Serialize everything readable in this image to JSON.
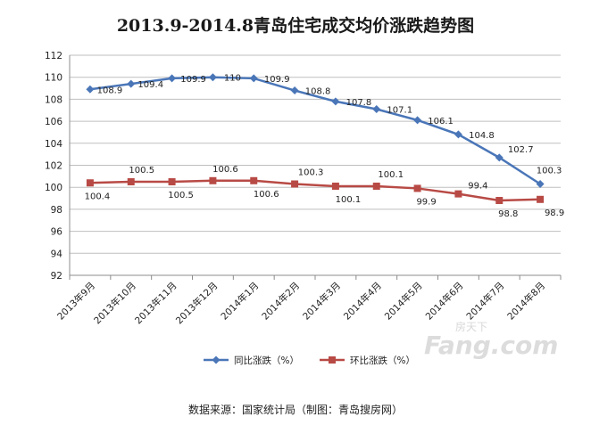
{
  "chart_data": {
    "type": "line",
    "title": "2013.9-2014.8青岛住宅成交均价涨跌趋势图",
    "categories": [
      "2013年9月",
      "2013年10月",
      "2013年11月",
      "2013年12月",
      "2014年1月",
      "2014年2月",
      "2014年3月",
      "2014年4月",
      "2014年5月",
      "2014年6月",
      "2014年7月",
      "2014年8月"
    ],
    "series": [
      {
        "name": "同比涨跌（%）",
        "color": "#4a76b8",
        "marker": "diamond",
        "values": [
          108.9,
          109.4,
          109.9,
          110,
          109.9,
          108.8,
          107.8,
          107.1,
          106.1,
          104.8,
          102.7,
          100.3
        ]
      },
      {
        "name": "环比涨跌（%）",
        "color": "#b84a45",
        "marker": "square",
        "values": [
          100.4,
          100.5,
          100.5,
          100.6,
          100.6,
          100.3,
          100.1,
          100.1,
          99.9,
          99.4,
          98.8,
          98.9
        ]
      }
    ],
    "ylim": [
      92,
      112
    ],
    "yticks": [
      92,
      94,
      96,
      98,
      100,
      102,
      104,
      106,
      108,
      110,
      112
    ],
    "grid": "horizontal",
    "legend_position": "bottom",
    "xlabel": "",
    "ylabel": ""
  },
  "source_note": "数据来源：国家统计局（制图：青岛搜房网）",
  "watermark": {
    "top": "房天下",
    "bottom": "Fang.com"
  }
}
